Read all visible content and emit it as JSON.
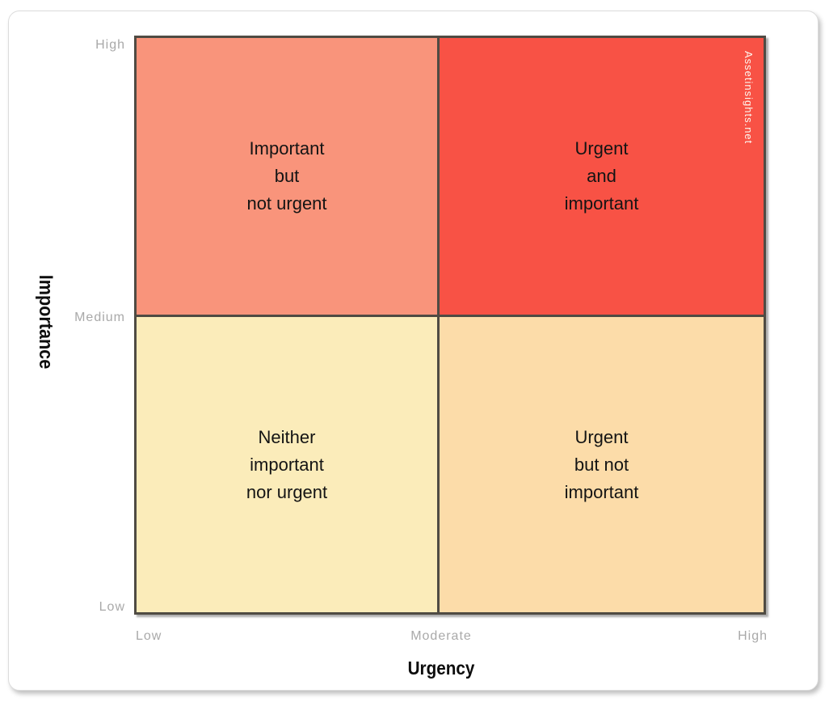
{
  "figure": {
    "watermark": "Assetinsights.net"
  },
  "x_axis": {
    "title": "Urgency",
    "ticks": [
      "Low",
      "Moderate",
      "High"
    ]
  },
  "y_axis": {
    "title": "Importance",
    "ticks": [
      "High",
      "Medium",
      "Low"
    ]
  },
  "quadrants": {
    "top_left": {
      "name": "Important but not urgent",
      "lines": [
        "Important",
        "but",
        "not urgent"
      ],
      "color": "#f9947b"
    },
    "top_right": {
      "name": "Urgent and important",
      "lines": [
        "Urgent",
        "and",
        "important"
      ],
      "color": "#f85245"
    },
    "bottom_left": {
      "name": "Neither important nor urgent",
      "lines": [
        "Neither",
        "important",
        "nor urgent"
      ],
      "color": "#fbecba"
    },
    "bottom_right": {
      "name": "Urgent but not important",
      "lines": [
        "Urgent",
        "but not",
        "important"
      ],
      "color": "#fcdca9"
    }
  },
  "colors": {
    "matrix_border": "#4f4b43",
    "tick_label": "#a9a9a9",
    "quadrant_text": "#141414",
    "watermark_text": "#fdf7ef"
  }
}
